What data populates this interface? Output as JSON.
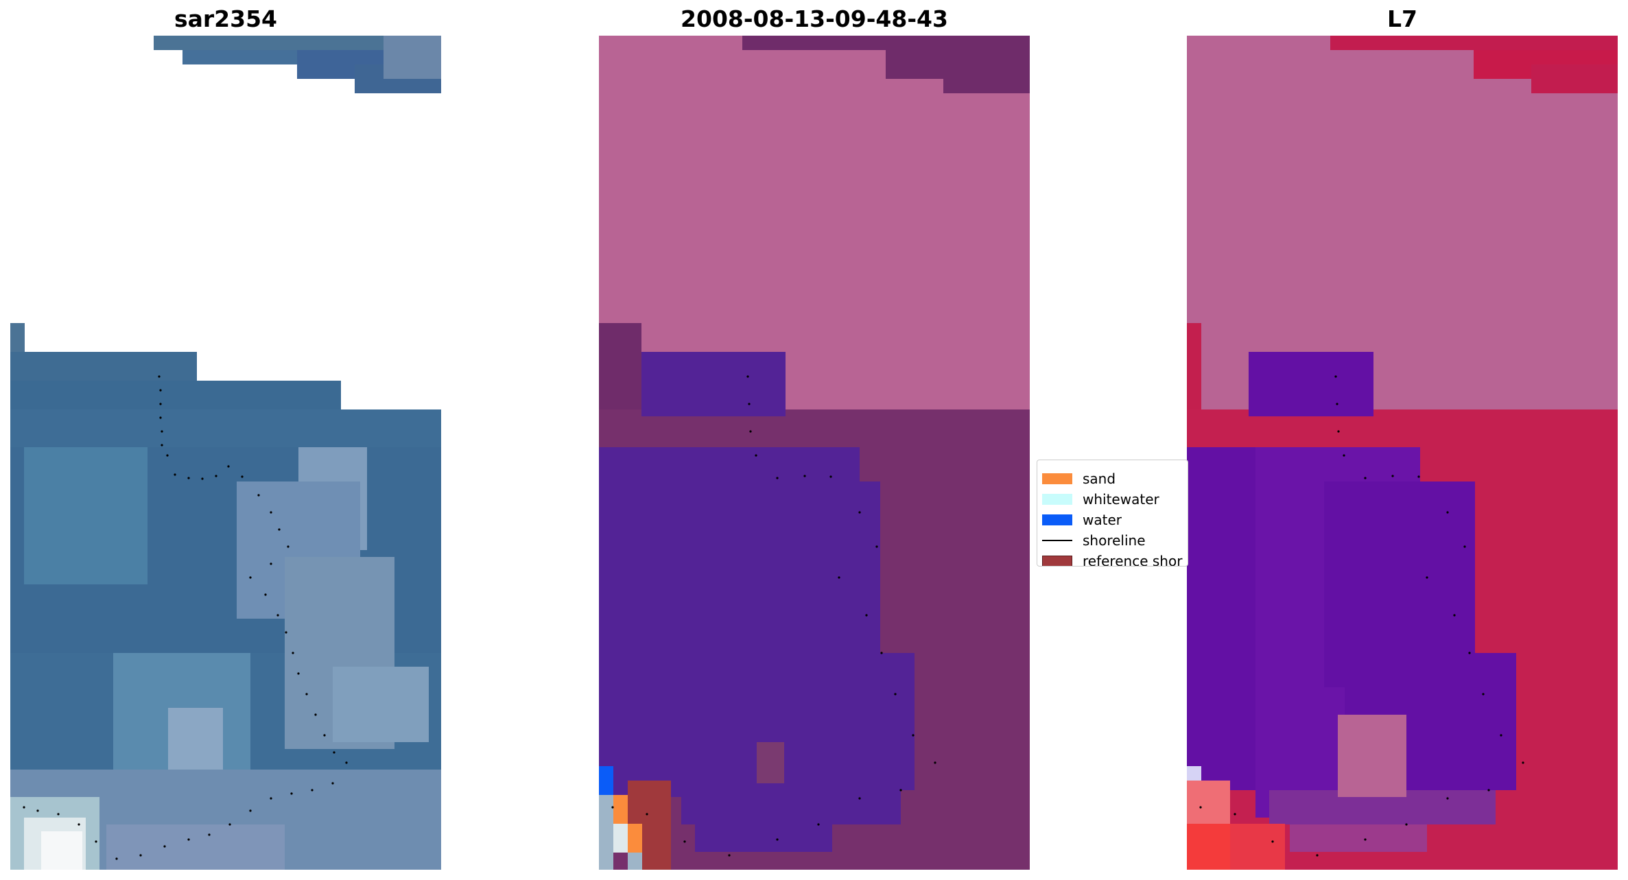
{
  "panels": [
    {
      "title": "sar2354",
      "kind": "rgb"
    },
    {
      "title": "2008-08-13-09-48-43",
      "kind": "classified"
    },
    {
      "title": "L7",
      "kind": "index"
    }
  ],
  "legend": {
    "items": [
      {
        "label": "sand",
        "color": "#fb8c3c",
        "type": "patch"
      },
      {
        "label": "whitewater",
        "color": "#c8fcfc",
        "type": "patch"
      },
      {
        "label": "water",
        "color": "#0a5cf8",
        "type": "patch"
      },
      {
        "label": "shoreline",
        "color": "#000000",
        "type": "line"
      },
      {
        "label": "reference shor",
        "color": "#a0393c",
        "type": "patch"
      }
    ]
  },
  "colors": {
    "rgb_land": "#3f6f96",
    "rgb_water": "#4a7ea3",
    "rgb_light": "#7f9fbf",
    "class_land": "#b86494",
    "class_water": "#532396",
    "class_dark": "#6f2c6a",
    "index_land": "#c31f4e",
    "index_water": "#6310a4",
    "index_pink": "#b86494"
  }
}
